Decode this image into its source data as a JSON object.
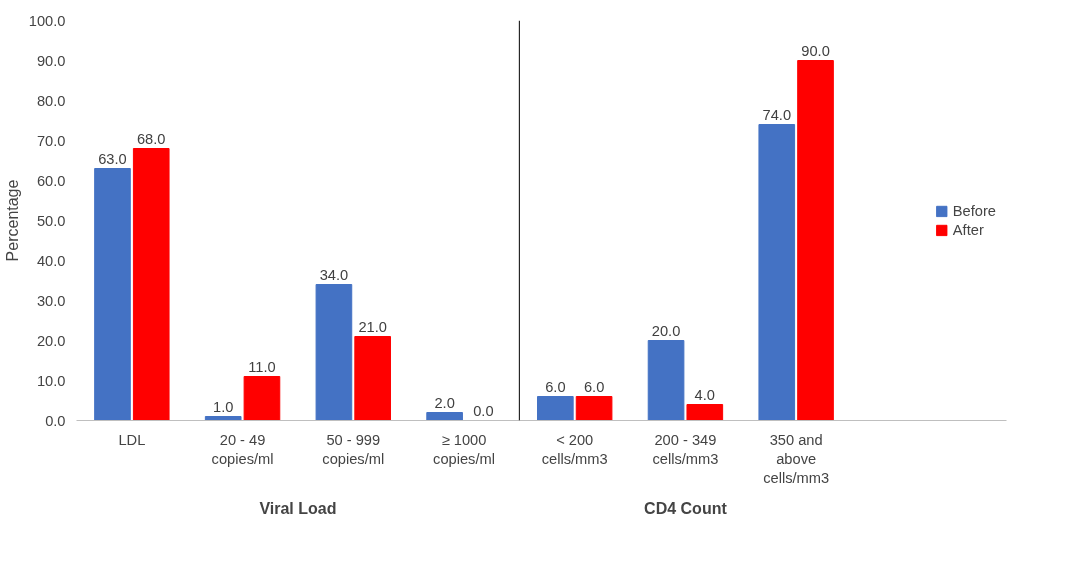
{
  "chart_data": {
    "type": "bar",
    "ylabel": "Percentage",
    "categories": [
      "LDL",
      "20 - 49\ncopies/ml",
      "50 - 999\ncopies/ml",
      "≥ 1000\ncopies/ml",
      "< 200\ncells/mm3",
      "200 - 349\ncells/mm3",
      "350 and\nabove\ncells/mm3"
    ],
    "series": [
      {
        "name": "Before",
        "color": "#4472c4",
        "values": [
          63,
          1,
          34,
          2,
          6,
          20,
          74
        ],
        "value_labels": [
          "63.0",
          "1.0",
          "34.0",
          "2.0",
          "6.0",
          "20.0",
          "74.0"
        ]
      },
      {
        "name": "After",
        "color": "#ff0000",
        "values": [
          68,
          11,
          21,
          0,
          6,
          4,
          90
        ],
        "value_labels": [
          "68.0",
          "11.0",
          "21.0",
          "0.0",
          "6.0",
          "4.0",
          "90.0"
        ]
      }
    ],
    "ylim": [
      0,
      100
    ],
    "yticks": [
      {
        "value": 0,
        "label": "0.0"
      },
      {
        "value": 10,
        "label": "10.0"
      },
      {
        "value": 20,
        "label": "20.0"
      },
      {
        "value": 30,
        "label": "30.0"
      },
      {
        "value": 40,
        "label": "40.0"
      },
      {
        "value": 50,
        "label": "50.0"
      },
      {
        "value": 60,
        "label": "60.0"
      },
      {
        "value": 70,
        "label": "70.0"
      },
      {
        "value": 80,
        "label": "80.0"
      },
      {
        "value": 90,
        "label": "90.0"
      },
      {
        "value": 100,
        "label": "100.0"
      }
    ],
    "annotations": [
      "Viral Load",
      "CD4 Count"
    ],
    "grid": false,
    "legend": "right"
  }
}
